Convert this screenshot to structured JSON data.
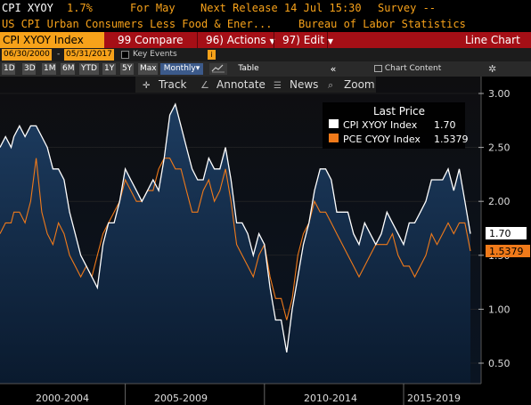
{
  "header": {
    "ticker": "CPI XYOY",
    "value": "1.7%",
    "for_label": "For May",
    "next_release": "Next Release 14 Jul 15:30",
    "survey": "Survey --",
    "description": "US CPI Urban Consumers Less Food & Ener...",
    "source": "Bureau of Labor Statistics"
  },
  "toolbar": {
    "index_label": "CPI XYOY Index",
    "compare_num": "99",
    "compare_label": "Compare",
    "actions_num": "96)",
    "actions_label": "Actions",
    "edit_num": "97)",
    "edit_label": "Edit",
    "chart_type": "Line Chart"
  },
  "range": {
    "start": "06/30/2000",
    "end": "05/31/2017",
    "key_events": "Key Events"
  },
  "periods": {
    "items": [
      "1D",
      "3D",
      "1M",
      "6M",
      "YTD",
      "1Y",
      "5Y",
      "Max"
    ],
    "frequency": "Monthly",
    "table": "Table",
    "collapse": "«",
    "chart_content": "Chart Content",
    "settings_icon": "gear-icon"
  },
  "chart_tools": {
    "track": "Track",
    "annotate": "Annotate",
    "news": "News",
    "zoom": "Zoom"
  },
  "legend": {
    "title": "Last Price",
    "entries": [
      {
        "label": "CPI XYOY Index",
        "value": "1.70",
        "color": "#ffffff"
      },
      {
        "label": "PCE CYOY Index",
        "value": "1.5379",
        "color": "#f07a1a"
      }
    ]
  },
  "colors": {
    "amber": "#f7a21a",
    "toolbar_red": "#a50f16",
    "cpi_line": "#ffffff",
    "pce_line": "#f07a1a",
    "area_fill": "#1a3350"
  },
  "chart_data": {
    "type": "line",
    "title": "",
    "xlabel": "",
    "ylabel": "",
    "x_tick_labels": [
      "2000-2004",
      "2005-2009",
      "2010-2014",
      "2015-2019"
    ],
    "y_ticks": [
      "3.00",
      "2.50",
      "2.00",
      "1.50",
      "1.00",
      "0.50"
    ],
    "ylim": [
      0.5,
      3.0
    ],
    "x_range": [
      "2000-06",
      "2017-05"
    ],
    "series": [
      {
        "name": "CPI XYOY Index",
        "last_value": "1.70",
        "values": [
          [
            2000.5,
            2.5
          ],
          [
            2000.7,
            2.6
          ],
          [
            2000.9,
            2.5
          ],
          [
            2001.0,
            2.6
          ],
          [
            2001.2,
            2.7
          ],
          [
            2001.4,
            2.6
          ],
          [
            2001.6,
            2.7
          ],
          [
            2001.8,
            2.7
          ],
          [
            2002.0,
            2.6
          ],
          [
            2002.2,
            2.5
          ],
          [
            2002.4,
            2.3
          ],
          [
            2002.6,
            2.3
          ],
          [
            2002.8,
            2.2
          ],
          [
            2003.0,
            1.9
          ],
          [
            2003.2,
            1.7
          ],
          [
            2003.4,
            1.5
          ],
          [
            2003.6,
            1.4
          ],
          [
            2003.8,
            1.3
          ],
          [
            2004.0,
            1.2
          ],
          [
            2004.2,
            1.6
          ],
          [
            2004.4,
            1.8
          ],
          [
            2004.6,
            1.8
          ],
          [
            2004.8,
            2.0
          ],
          [
            2005.0,
            2.3
          ],
          [
            2005.2,
            2.2
          ],
          [
            2005.4,
            2.1
          ],
          [
            2005.6,
            2.0
          ],
          [
            2005.8,
            2.1
          ],
          [
            2006.0,
            2.2
          ],
          [
            2006.2,
            2.1
          ],
          [
            2006.4,
            2.4
          ],
          [
            2006.6,
            2.8
          ],
          [
            2006.8,
            2.9
          ],
          [
            2007.0,
            2.7
          ],
          [
            2007.2,
            2.5
          ],
          [
            2007.4,
            2.3
          ],
          [
            2007.6,
            2.2
          ],
          [
            2007.8,
            2.2
          ],
          [
            2008.0,
            2.4
          ],
          [
            2008.2,
            2.3
          ],
          [
            2008.4,
            2.3
          ],
          [
            2008.6,
            2.5
          ],
          [
            2008.8,
            2.2
          ],
          [
            2009.0,
            1.8
          ],
          [
            2009.2,
            1.8
          ],
          [
            2009.4,
            1.7
          ],
          [
            2009.6,
            1.5
          ],
          [
            2009.8,
            1.7
          ],
          [
            2010.0,
            1.6
          ],
          [
            2010.2,
            1.2
          ],
          [
            2010.4,
            0.9
          ],
          [
            2010.6,
            0.9
          ],
          [
            2010.8,
            0.6
          ],
          [
            2011.0,
            1.0
          ],
          [
            2011.2,
            1.3
          ],
          [
            2011.4,
            1.6
          ],
          [
            2011.6,
            1.8
          ],
          [
            2011.8,
            2.1
          ],
          [
            2012.0,
            2.3
          ],
          [
            2012.2,
            2.3
          ],
          [
            2012.4,
            2.2
          ],
          [
            2012.6,
            1.9
          ],
          [
            2012.8,
            1.9
          ],
          [
            2013.0,
            1.9
          ],
          [
            2013.2,
            1.7
          ],
          [
            2013.4,
            1.6
          ],
          [
            2013.6,
            1.8
          ],
          [
            2013.8,
            1.7
          ],
          [
            2014.0,
            1.6
          ],
          [
            2014.2,
            1.7
          ],
          [
            2014.4,
            1.9
          ],
          [
            2014.6,
            1.8
          ],
          [
            2014.8,
            1.7
          ],
          [
            2015.0,
            1.6
          ],
          [
            2015.2,
            1.8
          ],
          [
            2015.4,
            1.8
          ],
          [
            2015.6,
            1.9
          ],
          [
            2015.8,
            2.0
          ],
          [
            2016.0,
            2.2
          ],
          [
            2016.2,
            2.2
          ],
          [
            2016.4,
            2.2
          ],
          [
            2016.6,
            2.3
          ],
          [
            2016.8,
            2.1
          ],
          [
            2017.0,
            2.3
          ],
          [
            2017.2,
            2.0
          ],
          [
            2017.4,
            1.7
          ]
        ]
      },
      {
        "name": "PCE CYOY Index",
        "last_value": "1.5379",
        "values": [
          [
            2000.5,
            1.7
          ],
          [
            2000.7,
            1.8
          ],
          [
            2000.9,
            1.8
          ],
          [
            2001.0,
            1.9
          ],
          [
            2001.2,
            1.9
          ],
          [
            2001.4,
            1.8
          ],
          [
            2001.6,
            2.0
          ],
          [
            2001.8,
            2.4
          ],
          [
            2002.0,
            1.9
          ],
          [
            2002.2,
            1.7
          ],
          [
            2002.4,
            1.6
          ],
          [
            2002.6,
            1.8
          ],
          [
            2002.8,
            1.7
          ],
          [
            2003.0,
            1.5
          ],
          [
            2003.2,
            1.4
          ],
          [
            2003.4,
            1.3
          ],
          [
            2003.6,
            1.4
          ],
          [
            2003.8,
            1.3
          ],
          [
            2004.0,
            1.5
          ],
          [
            2004.2,
            1.7
          ],
          [
            2004.4,
            1.8
          ],
          [
            2004.6,
            1.9
          ],
          [
            2004.8,
            2.0
          ],
          [
            2005.0,
            2.2
          ],
          [
            2005.2,
            2.1
          ],
          [
            2005.4,
            2.0
          ],
          [
            2005.6,
            2.0
          ],
          [
            2005.8,
            2.1
          ],
          [
            2006.0,
            2.1
          ],
          [
            2006.2,
            2.3
          ],
          [
            2006.4,
            2.4
          ],
          [
            2006.6,
            2.4
          ],
          [
            2006.8,
            2.3
          ],
          [
            2007.0,
            2.3
          ],
          [
            2007.2,
            2.1
          ],
          [
            2007.4,
            1.9
          ],
          [
            2007.6,
            1.9
          ],
          [
            2007.8,
            2.1
          ],
          [
            2008.0,
            2.2
          ],
          [
            2008.2,
            2.0
          ],
          [
            2008.4,
            2.1
          ],
          [
            2008.6,
            2.3
          ],
          [
            2008.8,
            2.0
          ],
          [
            2009.0,
            1.6
          ],
          [
            2009.2,
            1.5
          ],
          [
            2009.4,
            1.4
          ],
          [
            2009.6,
            1.3
          ],
          [
            2009.8,
            1.5
          ],
          [
            2010.0,
            1.6
          ],
          [
            2010.2,
            1.3
          ],
          [
            2010.4,
            1.1
          ],
          [
            2010.6,
            1.1
          ],
          [
            2010.8,
            0.9
          ],
          [
            2011.0,
            1.1
          ],
          [
            2011.2,
            1.5
          ],
          [
            2011.4,
            1.7
          ],
          [
            2011.6,
            1.8
          ],
          [
            2011.8,
            2.0
          ],
          [
            2012.0,
            1.9
          ],
          [
            2012.2,
            1.9
          ],
          [
            2012.4,
            1.8
          ],
          [
            2012.6,
            1.7
          ],
          [
            2012.8,
            1.6
          ],
          [
            2013.0,
            1.5
          ],
          [
            2013.2,
            1.4
          ],
          [
            2013.4,
            1.3
          ],
          [
            2013.6,
            1.4
          ],
          [
            2013.8,
            1.5
          ],
          [
            2014.0,
            1.6
          ],
          [
            2014.2,
            1.6
          ],
          [
            2014.4,
            1.6
          ],
          [
            2014.6,
            1.7
          ],
          [
            2014.8,
            1.5
          ],
          [
            2015.0,
            1.4
          ],
          [
            2015.2,
            1.4
          ],
          [
            2015.4,
            1.3
          ],
          [
            2015.6,
            1.4
          ],
          [
            2015.8,
            1.5
          ],
          [
            2016.0,
            1.7
          ],
          [
            2016.2,
            1.6
          ],
          [
            2016.4,
            1.7
          ],
          [
            2016.6,
            1.8
          ],
          [
            2016.8,
            1.7
          ],
          [
            2017.0,
            1.8
          ],
          [
            2017.2,
            1.8
          ],
          [
            2017.4,
            1.54
          ]
        ]
      }
    ]
  }
}
